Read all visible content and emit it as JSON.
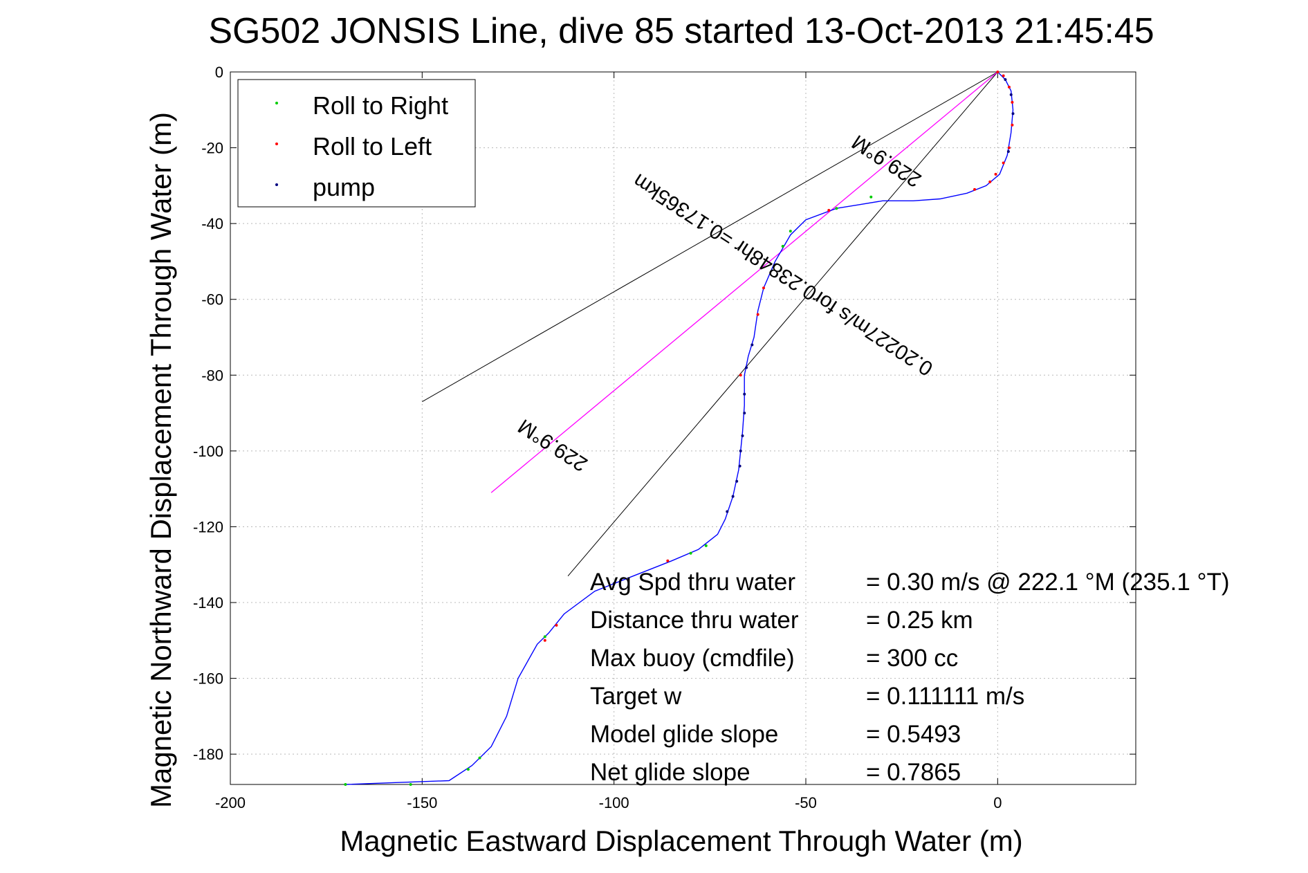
{
  "chart_data": {
    "type": "line",
    "title": "SG502 JONSIS Line, dive 85 started 13-Oct-2013 21:45:45",
    "xlabel": "Magnetic Eastward Displacement Through Water (m)",
    "ylabel": "Magnetic Northward Displacement Through Water (m)",
    "xlim": [
      -200,
      36
    ],
    "ylim": [
      -188,
      0
    ],
    "xticks": [
      -200,
      -150,
      -100,
      -50,
      0
    ],
    "yticks": [
      0,
      -20,
      -40,
      -60,
      -80,
      -100,
      -120,
      -140,
      -160,
      -180
    ],
    "grid": true,
    "legend_position": "top-left",
    "legend": [
      {
        "label": "Roll to Right",
        "color": "#00cc00"
      },
      {
        "label": "Roll to Left",
        "color": "#ff0000"
      },
      {
        "label": "pump",
        "color": "#000080"
      }
    ],
    "track_color": "#0000ff",
    "track": [
      [
        0,
        0
      ],
      [
        2,
        -2
      ],
      [
        3.5,
        -5
      ],
      [
        4,
        -10
      ],
      [
        3.5,
        -16
      ],
      [
        2.5,
        -22
      ],
      [
        0.5,
        -27
      ],
      [
        -3,
        -30
      ],
      [
        -8,
        -32
      ],
      [
        -15,
        -33.5
      ],
      [
        -22,
        -34
      ],
      [
        -30,
        -34
      ],
      [
        -36,
        -35
      ],
      [
        -42,
        -36
      ],
      [
        -50,
        -39
      ],
      [
        -54,
        -43
      ],
      [
        -58,
        -50
      ],
      [
        -61,
        -57
      ],
      [
        -62.5,
        -63
      ],
      [
        -63.5,
        -70
      ],
      [
        -65,
        -75
      ],
      [
        -66,
        -80
      ],
      [
        -66,
        -88
      ],
      [
        -66.5,
        -95
      ],
      [
        -67,
        -100
      ],
      [
        -67.5,
        -105
      ],
      [
        -69,
        -112
      ],
      [
        -71,
        -118
      ],
      [
        -73,
        -122
      ],
      [
        -78,
        -126
      ],
      [
        -85,
        -129
      ],
      [
        -95,
        -133
      ],
      [
        -105,
        -137
      ],
      [
        -113,
        -143
      ],
      [
        -117,
        -148
      ],
      [
        -120,
        -151
      ],
      [
        -125,
        -160
      ],
      [
        -128,
        -170
      ],
      [
        -132,
        -178
      ],
      [
        -137,
        -183
      ],
      [
        -143,
        -187
      ],
      [
        -170,
        -188
      ]
    ],
    "roll_right_points": [
      [
        -33,
        -33
      ],
      [
        -42,
        -36
      ],
      [
        -54,
        -42
      ],
      [
        -56,
        -46
      ],
      [
        -76,
        -125
      ],
      [
        -80,
        -127
      ],
      [
        -118,
        -149
      ],
      [
        -135,
        -181
      ],
      [
        -138,
        -184
      ],
      [
        -170,
        -188
      ],
      [
        -153,
        -188
      ]
    ],
    "roll_left_points": [
      [
        0,
        0
      ],
      [
        1.5,
        -1
      ],
      [
        3,
        -4
      ],
      [
        3.8,
        -8
      ],
      [
        3.8,
        -14
      ],
      [
        3,
        -20
      ],
      [
        1.5,
        -24
      ],
      [
        -0.5,
        -27
      ],
      [
        -2,
        -29
      ],
      [
        -6,
        -31
      ],
      [
        -44,
        -36.5
      ],
      [
        -61,
        -57
      ],
      [
        -62.5,
        -64
      ],
      [
        -67,
        -80
      ],
      [
        -86,
        -129
      ],
      [
        -115,
        -146
      ],
      [
        -118,
        -150
      ]
    ],
    "pump_points": [
      [
        2,
        -2
      ],
      [
        3.5,
        -6
      ],
      [
        4,
        -11
      ],
      [
        2.8,
        -21
      ],
      [
        -64,
        -72
      ],
      [
        -65.5,
        -78
      ],
      [
        -66,
        -85
      ],
      [
        -66,
        -90
      ],
      [
        -66.5,
        -96
      ],
      [
        -67,
        -100
      ],
      [
        -67.2,
        -104
      ],
      [
        -68,
        -108
      ],
      [
        -69,
        -112
      ],
      [
        -70.5,
        -116
      ],
      [
        -100,
        -135
      ]
    ],
    "heading_line_color": "#ff00ff",
    "heading_line": [
      [
        0,
        0
      ],
      [
        -132,
        -111
      ]
    ],
    "cone_lines": [
      [
        [
          0,
          0
        ],
        [
          -150,
          -87
        ]
      ],
      [
        [
          0,
          0
        ],
        [
          -112,
          -133
        ]
      ]
    ],
    "annotations": [
      {
        "text": "229.9°M",
        "x": -28,
        "y": -22,
        "rotation": 213
      },
      {
        "text": "0.20227m/s for0.23848hr =0.17365km",
        "x": -55,
        "y": -52,
        "rotation": 213
      },
      {
        "text": "229.9°M",
        "x": -115,
        "y": -97,
        "rotation": 213
      }
    ],
    "stats": [
      {
        "label": "Avg Spd thru water",
        "value": "=  0.30 m/s @ 222.1 °M (235.1 °T)"
      },
      {
        "label": "Distance thru water",
        "value": "=  0.25 km"
      },
      {
        "label": "Max buoy (cmdfile)",
        "value": "= 300 cc"
      },
      {
        "label": "Target w",
        "value": "= 0.111111 m/s"
      },
      {
        "label": "Model glide slope",
        "value": "= 0.5493"
      },
      {
        "label": "Net glide slope",
        "value": "= 0.7865"
      }
    ]
  }
}
